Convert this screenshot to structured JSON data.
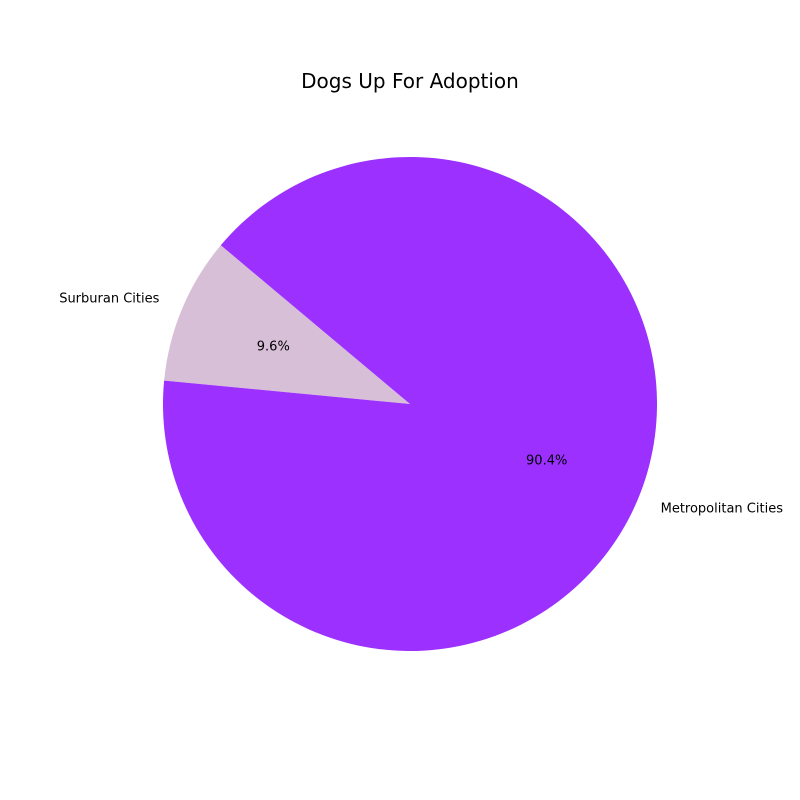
{
  "chart_data": {
    "type": "pie",
    "title": "Dogs Up For Adoption",
    "slices": [
      {
        "label": "Surburan Cities",
        "value": 9.6,
        "display": "9.6%",
        "color": "#d8bfd8"
      },
      {
        "label": "Metropolitan Cities",
        "value": 90.4,
        "display": "90.4%",
        "color": "#9b30ff"
      }
    ],
    "start_angle_deg": 140,
    "direction": "counterclockwise",
    "legend": "none"
  }
}
